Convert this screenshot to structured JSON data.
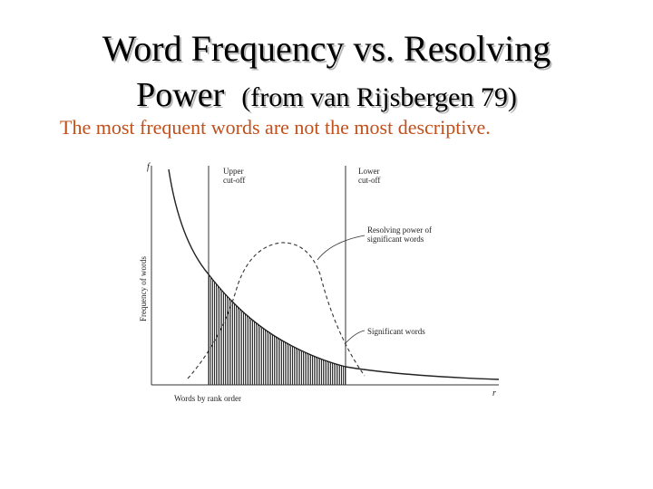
{
  "slide": {
    "title_line1": "Word Frequency vs. Resolving",
    "title_line2_main": "Power",
    "title_line2_sub": "(from van Rijsbergen 79)",
    "subtitle": "The most frequent words are not the most descriptive."
  },
  "figure": {
    "y_axis_symbol": "f",
    "x_axis_symbol": "r",
    "y_axis_label": "Frequency of words",
    "x_axis_label": "Words by rank order",
    "upper_cutoff_line1": "Upper",
    "upper_cutoff_line2": "cut-off",
    "lower_cutoff_line1": "Lower",
    "lower_cutoff_line2": "cut-off",
    "resolving_line1": "Resolving power of",
    "resolving_line2": "significant words",
    "significant_words": "Significant words"
  }
}
